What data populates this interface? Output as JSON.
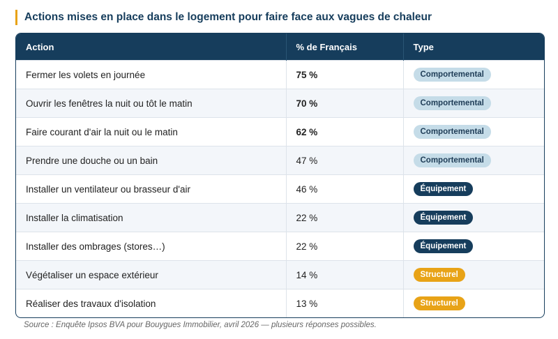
{
  "title": "Actions mises en place dans le logement pour faire face aux vagues de chaleur",
  "table": {
    "header": [
      "Action",
      "% de Français",
      "Type"
    ],
    "rows": [
      [
        "Fermer les volets en journée",
        "75 %",
        "Comportemental"
      ],
      [
        "Ouvrir les fenêtres la nuit ou tôt le matin",
        "70 %",
        "Comportemental"
      ],
      [
        "Faire courant d'air la nuit ou le matin",
        "62 %",
        "Comportemental"
      ],
      [
        "Prendre une douche ou un bain",
        "47 %",
        "Comportemental"
      ],
      [
        "Installer un ventilateur ou brasseur d'air",
        "46 %",
        "Équipement"
      ],
      [
        "Installer la climatisation",
        "22 %",
        "Équipement"
      ],
      [
        "Installer des ombrages (stores…)",
        "22 %",
        "Équipement"
      ],
      [
        "Végétaliser un espace extérieur",
        "14 %",
        "Structurel"
      ],
      [
        "Réaliser des travaux d'isolation",
        "13 %",
        "Structurel"
      ]
    ]
  },
  "source": "Source : Enquête Ipsos BVA pour Bouygues Immobilier, avril 2026 — plusieurs réponses possibles."
}
